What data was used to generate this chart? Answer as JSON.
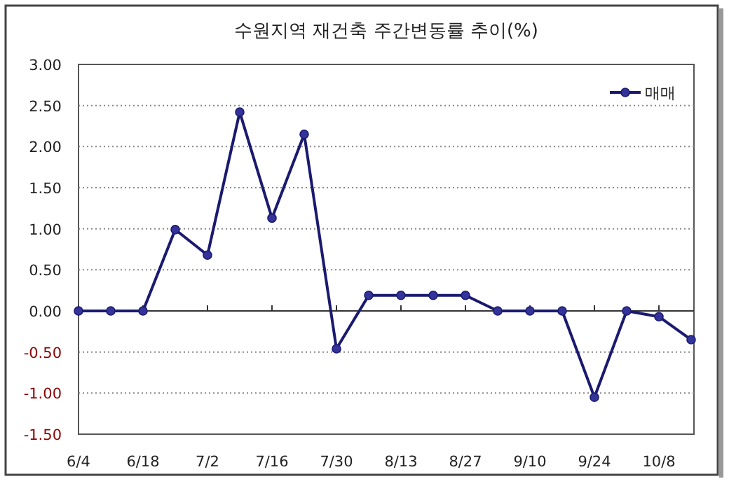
{
  "chart_data": {
    "type": "line",
    "title": "수원지역 재건축 주간변동률 추이(%)",
    "categories": [
      "6/4",
      null,
      "6/18",
      null,
      "7/2",
      null,
      "7/16",
      null,
      "7/30",
      null,
      "8/13",
      null,
      "8/27",
      null,
      "9/10",
      null,
      "9/24",
      null,
      "10/8",
      null
    ],
    "series": [
      {
        "name": "매매",
        "color": "#1a1a70",
        "values": [
          0,
          0,
          0,
          0.99,
          0.68,
          2.42,
          1.13,
          2.15,
          -0.46,
          0.19,
          0.19,
          0.19,
          0.19,
          0,
          0,
          0,
          -1.05,
          0,
          -0.07,
          -0.35
        ]
      }
    ],
    "ylim": [
      -1.5,
      3
    ],
    "yticks": [
      {
        "value": -1.5,
        "label": "-1.50"
      },
      {
        "value": -1,
        "label": "-1.00"
      },
      {
        "value": -0.5,
        "label": "-0.50"
      },
      {
        "value": 0,
        "label": "0.00"
      },
      {
        "value": 0.5,
        "label": "0.50"
      },
      {
        "value": 1,
        "label": "1.00"
      },
      {
        "value": 1.5,
        "label": "1.50"
      },
      {
        "value": 2,
        "label": "2.00"
      },
      {
        "value": 2.5,
        "label": "2.50"
      },
      {
        "value": 3,
        "label": "3.00"
      }
    ],
    "grid": "y",
    "legend": "top right",
    "marker": "circle",
    "line_style": "solid"
  }
}
